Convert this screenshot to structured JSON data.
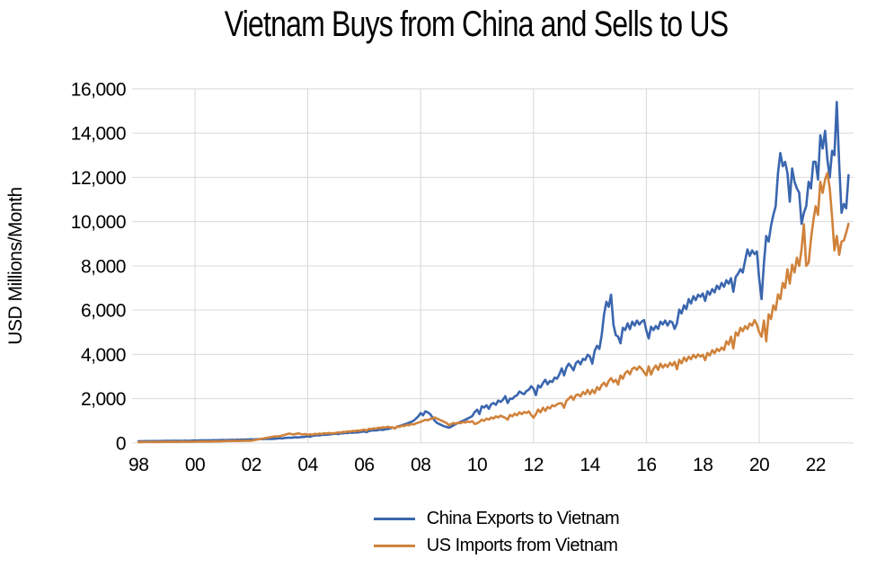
{
  "page": {
    "background": "#ffffff"
  },
  "chart_data": {
    "type": "line",
    "title": "Vietnam Buys from China and Sells to US",
    "ylabel": "USD Millions/Month",
    "xlabel": "",
    "frequency": "monthly",
    "x_start_year": 1998,
    "x_end": "2023-03",
    "xlim": [
      1997.77,
      2023.34
    ],
    "ylim": [
      0,
      16000
    ],
    "grid": "on",
    "grid_color": "#d9d9d9",
    "axis_text_color": "#000000",
    "legend_position": "bottom",
    "x_tick_years": [
      1998,
      2000,
      2002,
      2004,
      2006,
      2008,
      2010,
      2012,
      2014,
      2016,
      2018,
      2020,
      2022
    ],
    "x_tick_labels": [
      "98",
      "00",
      "02",
      "04",
      "06",
      "08",
      "10",
      "12",
      "14",
      "16",
      "18",
      "20",
      "22"
    ],
    "y_ticks": [
      0,
      2000,
      4000,
      6000,
      8000,
      10000,
      12000,
      14000,
      16000
    ],
    "y_tick_labels": [
      "0",
      "2,000",
      "4,000",
      "6,000",
      "8,000",
      "10,000",
      "12,000",
      "14,000",
      "16,000"
    ],
    "v_grid_years": [
      2000,
      2004,
      2008,
      2012,
      2016,
      2020
    ],
    "series": [
      {
        "name": "China Exports to Vietnam",
        "color": "#3A66AE",
        "values": [
          80,
          78,
          83,
          81,
          84,
          82,
          86,
          84,
          87,
          85,
          88,
          90,
          92,
          88,
          95,
          93,
          97,
          95,
          99,
          97,
          101,
          99,
          103,
          106,
          110,
          104,
          115,
          112,
          118,
          115,
          121,
          118,
          124,
          121,
          127,
          131,
          135,
          127,
          140,
          136,
          143,
          140,
          147,
          143,
          150,
          146,
          153,
          158,
          165,
          154,
          172,
          167,
          177,
          172,
          182,
          177,
          187,
          182,
          192,
          201,
          214,
          200,
          225,
          232,
          240,
          232,
          248,
          255,
          248,
          262,
          270,
          281,
          300,
          278,
          320,
          335,
          350,
          340,
          360,
          375,
          365,
          385,
          395,
          411,
          420,
          398,
          440,
          435,
          455,
          445,
          465,
          460,
          480,
          470,
          490,
          502,
          520,
          488,
          540,
          556,
          572,
          560,
          586,
          601,
          590,
          616,
          631,
          652,
          700,
          658,
          731,
          762,
          800,
          832,
          870,
          912,
          952,
          1004,
          1102,
          1204,
          1352,
          1248,
          1431,
          1383,
          1302,
          1155,
          1005,
          903,
          852,
          800,
          751,
          722,
          688,
          731,
          801,
          852,
          903,
          953,
          1002,
          1053,
          1103,
          1152,
          1222,
          1403,
          1503,
          1302,
          1652,
          1601,
          1703,
          1542,
          1751,
          1802,
          1721,
          1912,
          1851,
          1953,
          2112,
          1803,
          2002,
          1991,
          2102,
          2153,
          2322,
          2252,
          2203,
          2352,
          2403,
          2563,
          2451,
          2162,
          2601,
          2502,
          2703,
          2853,
          2652,
          2801,
          2752,
          2951,
          2902,
          3103,
          3372,
          3053,
          3403,
          3582,
          3451,
          3282,
          3601,
          3703,
          3552,
          3802,
          3751,
          3982,
          3903,
          3582,
          4152,
          4391,
          4252,
          4872,
          5812,
          6381,
          6152,
          6702,
          5331,
          4872,
          4802,
          4502,
          5202,
          5102,
          5402,
          5142,
          5482,
          5302,
          5531,
          5352,
          5482,
          5552,
          5082,
          4722,
          5252,
          5102,
          5282,
          5152,
          5482,
          5352,
          5532,
          5302,
          5502,
          5452,
          5152,
          5402,
          6022,
          5852,
          6222,
          6052,
          6502,
          6302,
          6632,
          6452,
          6702,
          6602,
          6752,
          6422,
          6852,
          6702,
          6952,
          6802,
          7112,
          6952,
          7232,
          7052,
          7352,
          7202,
          7442,
          6832,
          7502,
          7652,
          7852,
          7702,
          8252,
          8742,
          8452,
          8702,
          8532,
          8652,
          7402,
          6502,
          8102,
          9352,
          9102,
          9802,
          10302,
          10702,
          12202,
          13102,
          12502,
          12702,
          12202,
          10902,
          12402,
          11802,
          11502,
          11302,
          9902,
          10402,
          10702,
          11802,
          11502,
          12702,
          12702,
          11902,
          13902,
          13302,
          14102,
          12802,
          12002,
          13202,
          13002,
          15402,
          12602,
          10402,
          10802,
          10602,
          12102
        ]
      },
      {
        "name": "US Imports from Vietnam",
        "color": "#D0823B",
        "values": [
          42,
          41,
          44,
          43,
          45,
          44,
          46,
          45,
          47,
          46,
          48,
          47,
          48,
          47,
          50,
          49,
          52,
          50,
          53,
          51,
          54,
          52,
          55,
          54,
          62,
          60,
          65,
          63,
          67,
          65,
          68,
          66,
          70,
          68,
          72,
          71,
          85,
          82,
          88,
          85,
          90,
          88,
          92,
          90,
          95,
          92,
          96,
          98,
          102,
          121,
          141,
          161,
          181,
          201,
          221,
          241,
          261,
          281,
          291,
          301,
          302,
          331,
          361,
          391,
          421,
          401,
          381,
          411,
          431,
          401,
          381,
          401,
          361,
          391,
          371,
          411,
          391,
          421,
          401,
          441,
          421,
          451,
          431,
          441,
          451,
          481,
          461,
          501,
          491,
          521,
          511,
          541,
          531,
          561,
          551,
          581,
          601,
          561,
          641,
          621,
          661,
          641,
          691,
          671,
          711,
          691,
          731,
          701,
          701,
          651,
          751,
          721,
          781,
          761,
          821,
          801,
          851,
          831,
          881,
          921,
          951,
          1001,
          1051,
          1021,
          1081,
          1101,
          1151,
          1101,
          1051,
          1001,
          951,
          901,
          801,
          851,
          901,
          871,
          921,
          891,
          951,
          921,
          975,
          941,
          981,
          851,
          891,
          951,
          1051,
          1001,
          1101,
          1051,
          1151,
          1101,
          1201,
          1151,
          1231,
          1181,
          1131,
          1051,
          1261,
          1201,
          1321,
          1251,
          1381,
          1301,
          1401,
          1351,
          1421,
          1261,
          1141,
          1301,
          1511,
          1381,
          1591,
          1451,
          1621,
          1561,
          1701,
          1651,
          1751,
          1791,
          1791,
          1591,
          1901,
          2001,
          2111,
          1951,
          2151,
          2191,
          2101,
          2301,
          2201,
          2401,
          2201,
          2401,
          2251,
          2521,
          2401,
          2621,
          2721,
          2561,
          2801,
          2931,
          2751,
          2851,
          2641,
          3051,
          2901,
          3151,
          3251,
          3101,
          3351,
          3411,
          3301,
          3461,
          3351,
          3201,
          3051,
          3461,
          3091,
          3351,
          3501,
          3301,
          3581,
          3401,
          3551,
          3431,
          3621,
          3501,
          3661,
          3331,
          3751,
          3601,
          3861,
          3701,
          3901,
          3781,
          3981,
          3851,
          4001,
          3901,
          3981,
          3741,
          4071,
          3951,
          4191,
          4051,
          4251,
          4151,
          4311,
          4201,
          4591,
          4451,
          4801,
          4271,
          5001,
          4851,
          5201,
          5051,
          5281,
          5151,
          5401,
          5301,
          5551,
          5351,
          5001,
          4801,
          5531,
          4591,
          5811,
          5601,
          6221,
          6001,
          6711,
          6501,
          7231,
          7001,
          7851,
          7201,
          8051,
          7701,
          8371,
          8001,
          8741,
          9881,
          8001,
          8151,
          9201,
          10041,
          10701,
          10301,
          11801,
          11301,
          11901,
          12201,
          11501,
          10201,
          8701,
          9351,
          8501,
          9101,
          9151,
          9501,
          9901
        ]
      }
    ]
  }
}
